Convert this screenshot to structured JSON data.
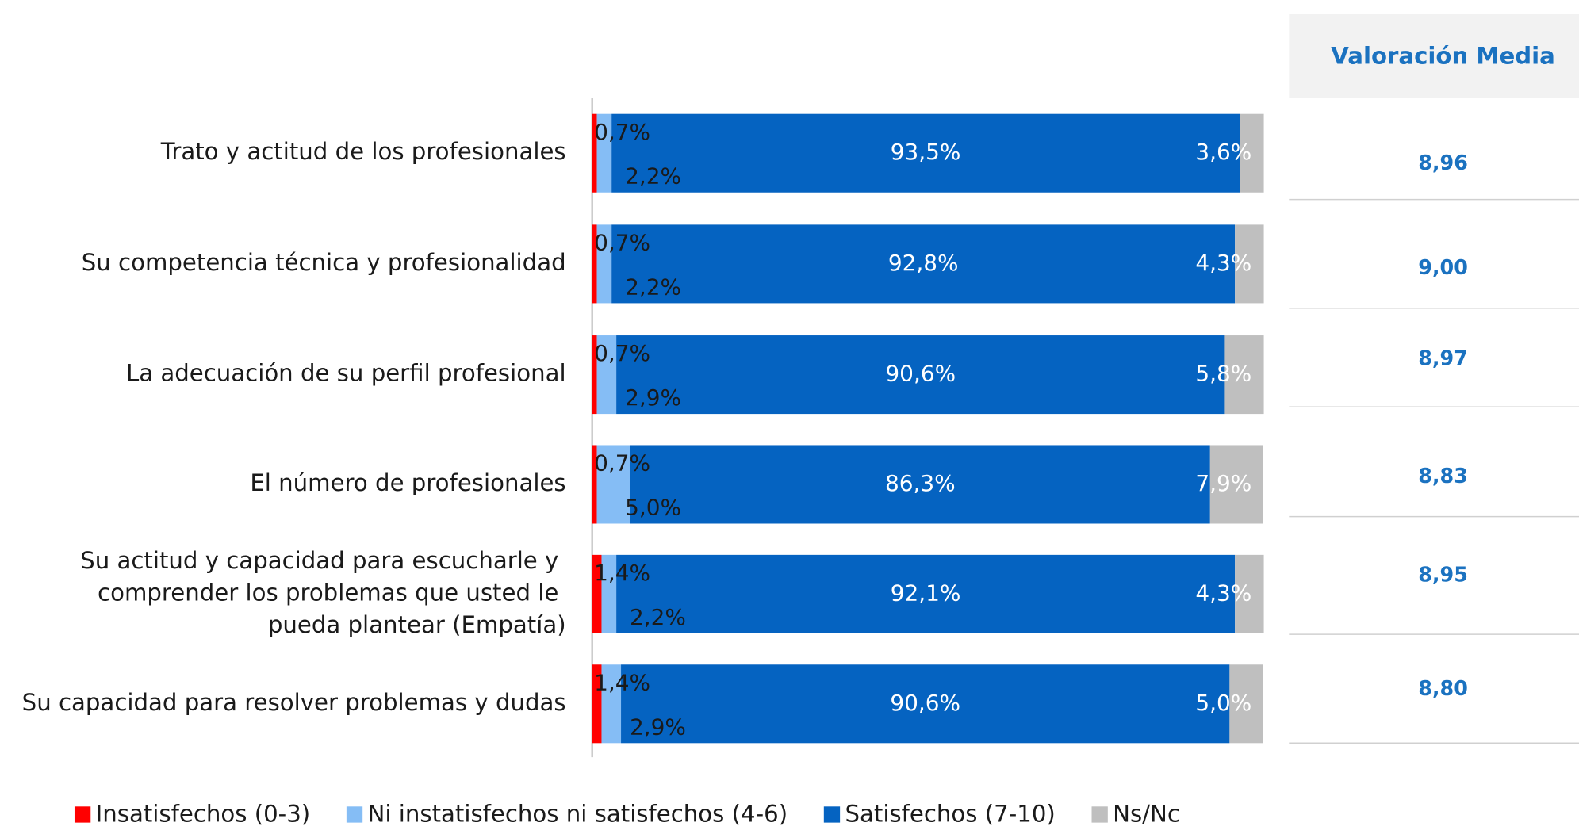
{
  "chart_data": {
    "type": "stacked_bar_horizontal",
    "categories": [
      "Trato y actitud de los profesionales",
      "Su competencia técnica y profesionalidad",
      "La adecuación de su perfil profesional",
      "El número de profesionales",
      "Su actitud y capacidad para escucharle y comprender los problemas que usted le pueda plantear (Empatía)",
      "Su capacidad para resolver problemas y dudas"
    ],
    "xlim": [
      0,
      100
    ],
    "series": [
      {
        "name": "Insatisfechos (0-3)",
        "color": "#ff0000",
        "values": [
          0.7,
          0.7,
          0.7,
          0.7,
          1.4,
          1.4
        ],
        "value_labels": [
          "0,7%",
          "0,7%",
          "0,7%",
          "0,7%",
          "1,4%",
          "1,4%"
        ]
      },
      {
        "name": "Ni instatisfechos ni satisfechos (4-6)",
        "color": "#85bdf5",
        "values": [
          2.2,
          2.2,
          2.9,
          5.0,
          2.2,
          2.9
        ],
        "value_labels": [
          "2,2%",
          "2,2%",
          "2,9%",
          "5,0%",
          "2,2%",
          "2,9%"
        ]
      },
      {
        "name": "Satisfechos (7-10)",
        "color": "#0563c1",
        "values": [
          93.5,
          92.8,
          90.6,
          86.3,
          92.1,
          90.6
        ],
        "value_labels": [
          "93,5%",
          "92,8%",
          "90,6%",
          "86,3%",
          "92,1%",
          "90,6%"
        ]
      },
      {
        "name": "Ns/Nc",
        "color": "#bfbfbf",
        "values": [
          3.6,
          4.3,
          5.8,
          7.9,
          4.3,
          5.0
        ],
        "value_labels": [
          "3,6%",
          "4,3%",
          "5,8%",
          "7,9%",
          "4,3%",
          "5,0%"
        ]
      }
    ],
    "mean_header": "Valoración Media",
    "mean_values": [
      8.96,
      9.0,
      8.97,
      8.83,
      8.95,
      8.8
    ],
    "mean_labels": [
      "8,96",
      "9,00",
      "8,97",
      "8,83",
      "8,95",
      "8,80"
    ],
    "legend": "bottom"
  }
}
